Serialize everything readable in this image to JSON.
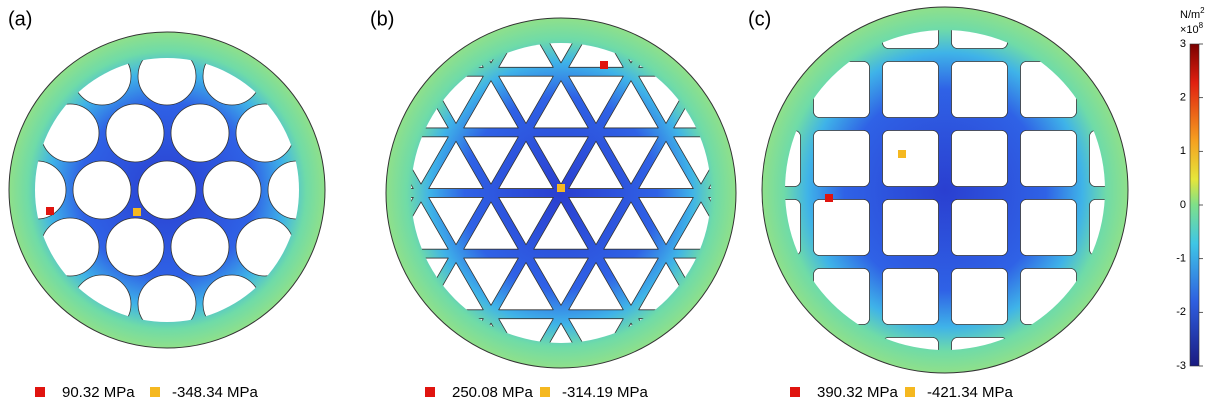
{
  "panels": [
    {
      "label": "(a)",
      "max_label": "90.32 MPa",
      "min_label": "-348.34 MPa"
    },
    {
      "label": "(b)",
      "max_label": "250.08 MPa",
      "min_label": "-314.19 MPa"
    },
    {
      "label": "(c)",
      "max_label": "390.32 MPa",
      "min_label": "-421.34 MPa"
    }
  ],
  "colorbar": {
    "unit": "N/m",
    "unit_exp": "2",
    "scale": "×10",
    "scale_exp": "8",
    "lim": [
      -3,
      3
    ],
    "ticks": [
      3,
      2,
      1,
      0,
      -1,
      -2,
      -3
    ]
  }
}
